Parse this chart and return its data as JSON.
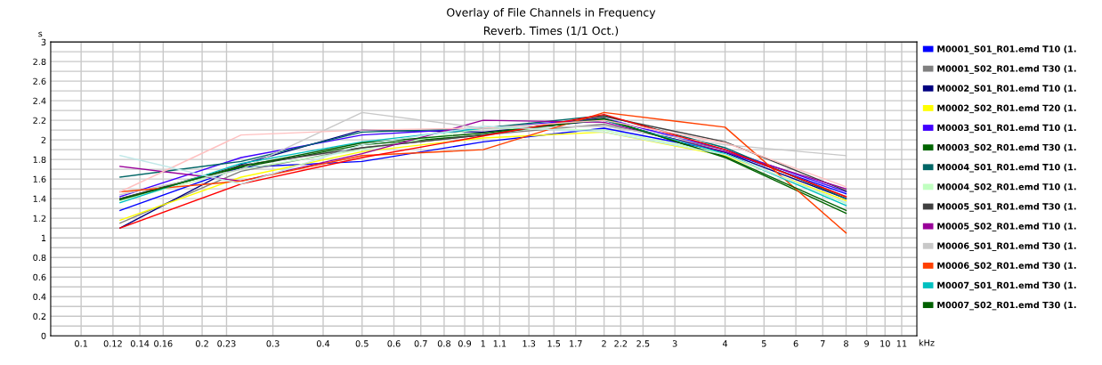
{
  "chart_data": {
    "type": "line",
    "title": "Overlay of File Channels in Frequency",
    "subtitle": "Reverb. Times (1/1 Oct.)",
    "xlabel": "kHz",
    "ylabel": "s",
    "log": "x",
    "grid": true,
    "legend": "right",
    "marker": "none",
    "line_style": "solid",
    "x": [
      0.125,
      0.25,
      0.5,
      1,
      2,
      4,
      8
    ],
    "xlim": [
      0.084,
      12
    ],
    "xticks": [
      0.1,
      0.12,
      0.14,
      0.16,
      0.2,
      0.23,
      0.3,
      0.4,
      0.5,
      0.6,
      0.7,
      0.8,
      0.9,
      1,
      1.1,
      1.3,
      1.5,
      1.7,
      2,
      2.2,
      2.5,
      3,
      4,
      5,
      6,
      7,
      8,
      9,
      10,
      11
    ],
    "ylim": [
      0,
      3
    ],
    "yticks": [
      0,
      {
        "value": 0.1,
        "label": null
      },
      0.2,
      {
        "value": 0.3,
        "label": null
      },
      0.4,
      {
        "value": 0.5,
        "label": null
      },
      0.6,
      {
        "value": 0.7,
        "label": null
      },
      0.8,
      {
        "value": 0.9,
        "label": null
      },
      1,
      {
        "value": 1.1,
        "label": null
      },
      1.2,
      {
        "value": 1.3,
        "label": null
      },
      1.4,
      {
        "value": 1.5,
        "label": null
      },
      1.6,
      {
        "value": 1.7,
        "label": null
      },
      1.8,
      {
        "value": 1.9,
        "label": null
      },
      2,
      {
        "value": 2.1,
        "label": null
      },
      2.2,
      {
        "value": 2.3,
        "label": null
      },
      2.4,
      {
        "value": 2.5,
        "label": null
      },
      2.6,
      {
        "value": 2.7,
        "label": null
      },
      2.8,
      {
        "value": 2.9,
        "label": null
      },
      3
    ],
    "series": [
      {
        "name": "M0001_S01_R01.emd T10 (1.",
        "color": "#0000ff",
        "values": [
          1.28,
          1.72,
          1.78,
          1.98,
          2.12,
          1.88,
          1.45
        ]
      },
      {
        "name": "M0001_S02_R01.emd T30 (1.",
        "color": "#808080",
        "values": [
          1.15,
          1.68,
          1.92,
          2.05,
          2.16,
          1.9,
          1.42
        ]
      },
      {
        "name": "M0002_S01_R01.emd T10 (1.",
        "color": "#000080",
        "values": [
          1.1,
          1.75,
          2.1,
          2.08,
          2.2,
          1.87,
          1.4
        ]
      },
      {
        "name": "M0002_S02_R01.emd T20 (1.",
        "color": "#ffff00",
        "values": [
          1.18,
          1.62,
          1.88,
          2.02,
          2.08,
          1.84,
          1.38
        ]
      },
      {
        "name": "M0003_S01_R01.emd T10 (1.",
        "color": "#4000ff",
        "values": [
          1.42,
          1.82,
          2.05,
          2.12,
          2.22,
          1.9,
          1.47
        ]
      },
      {
        "name": "M0003_S02_R01.emd T30 (1.",
        "color": "#006400",
        "values": [
          1.4,
          1.72,
          1.95,
          2.05,
          2.22,
          1.82,
          1.25
        ]
      },
      {
        "name": "M0004_S01_R01.emd T10 (1.",
        "color": "#006666",
        "values": [
          1.62,
          1.78,
          2.08,
          2.12,
          2.25,
          1.92,
          1.4
        ]
      },
      {
        "name": "M0004_S02_R01.emd T10 (1.",
        "color": "#c0ffc0",
        "values": [
          1.38,
          1.7,
          1.9,
          2.12,
          2.1,
          1.86,
          1.35
        ]
      },
      {
        "name": "M0005_S01_R01.emd T30 (1.",
        "color": "#404040",
        "values": [
          1.4,
          1.74,
          1.92,
          2.05,
          2.24,
          1.98,
          1.48
        ]
      },
      {
        "name": "M0005_S02_R01.emd T10 (1.",
        "color": "#990099",
        "values": [
          1.73,
          1.58,
          1.86,
          2.2,
          2.18,
          1.88,
          1.5
        ]
      },
      {
        "name": "M0006_S01_R01.emd T30 (1.",
        "color": "#c8c8c8",
        "values": [
          1.44,
          1.7,
          2.28,
          2.12,
          2.14,
          1.95,
          1.84
        ]
      },
      {
        "name": "M0006_S02_R01.emd T30 (1.",
        "color": "#ff4000",
        "values": [
          1.47,
          1.58,
          1.84,
          1.9,
          2.28,
          2.13,
          1.05
        ]
      },
      {
        "name": "M0007_S01_R01.emd T30 (1.",
        "color": "#00c0c0",
        "values": [
          1.36,
          1.76,
          1.98,
          2.12,
          2.2,
          1.86,
          1.33
        ]
      },
      {
        "name": "M0007_S02_R01.emd T30 (1.",
        "color": "#006000",
        "values": [
          1.39,
          1.73,
          1.97,
          2.07,
          2.21,
          1.83,
          1.28
        ]
      },
      {
        "color": "#ff0000",
        "values": [
          1.1,
          1.55,
          1.82,
          2.04,
          2.26,
          1.9,
          1.42
        ]
      },
      {
        "color": "#ffc0c0",
        "values": [
          1.47,
          2.05,
          2.1,
          2.12,
          2.2,
          1.97,
          1.52
        ]
      },
      {
        "color": "#c0e8e8",
        "values": [
          1.84,
          1.55,
          1.95,
          2.14,
          2.08,
          1.85,
          1.36
        ]
      }
    ]
  }
}
